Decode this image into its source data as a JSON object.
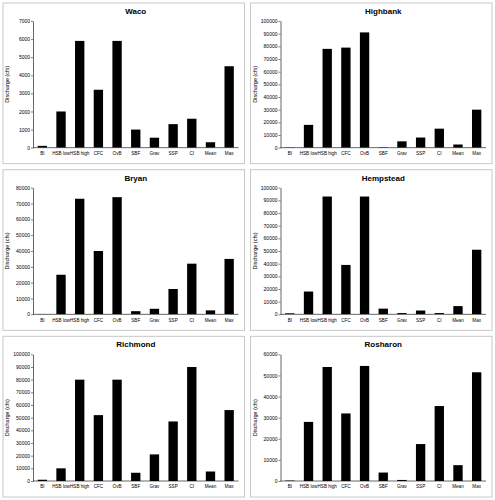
{
  "chart_data": [
    {
      "type": "bar",
      "title": "Waco",
      "y_label": "Discharge (cfs)",
      "color": "#000000",
      "categories": [
        "BI",
        "HSB low",
        "HSB high",
        "CFC",
        "OvB",
        "SBF",
        "Grav",
        "SSP",
        "CI",
        "Mean",
        "Max"
      ],
      "values": [
        100,
        2000,
        5900,
        3200,
        5900,
        1000,
        550,
        1300,
        1600,
        300,
        4500
      ],
      "ylim": [
        0,
        7000
      ],
      "yticks": [
        0,
        1000,
        2000,
        3000,
        4000,
        5000,
        6000,
        7000
      ]
    },
    {
      "type": "bar",
      "title": "Highbank",
      "y_label": "Discharge (cfs)",
      "color": "#000000",
      "categories": [
        "BI",
        "HSB low",
        "HSB high",
        "CFC",
        "OvB",
        "SBF",
        "Grav",
        "SSP",
        "CI",
        "Mean",
        "Max"
      ],
      "values": [
        200,
        18000,
        78000,
        79000,
        91000,
        300,
        5000,
        8000,
        15000,
        2500,
        30000
      ],
      "ylim": [
        0,
        100000
      ],
      "yticks": [
        0,
        10000,
        20000,
        30000,
        40000,
        50000,
        60000,
        70000,
        80000,
        90000,
        100000
      ]
    },
    {
      "type": "bar",
      "title": "Bryan",
      "y_label": "Discharge (cfs)",
      "color": "#000000",
      "categories": [
        "BI",
        "HSB low",
        "HSB high",
        "CFC",
        "OvB",
        "SBF",
        "Grav",
        "SSP",
        "CI",
        "Mean",
        "Max"
      ],
      "values": [
        200,
        25000,
        73000,
        40000,
        74000,
        2000,
        3500,
        16000,
        32000,
        2500,
        35000
      ],
      "ylim": [
        0,
        80000
      ],
      "yticks": [
        0,
        10000,
        20000,
        30000,
        40000,
        50000,
        60000,
        70000,
        80000
      ]
    },
    {
      "type": "bar",
      "title": "Hempstead",
      "y_label": "Discharge (cfs)",
      "color": "#000000",
      "categories": [
        "BI",
        "HSB low",
        "HSB high",
        "CFC",
        "OvB",
        "SBF",
        "Grav",
        "SSP",
        "CI",
        "Mean",
        "Max"
      ],
      "values": [
        800,
        18000,
        93000,
        39000,
        93000,
        4500,
        1000,
        3000,
        1000,
        6500,
        51000
      ],
      "ylim": [
        0,
        100000
      ],
      "yticks": [
        0,
        10000,
        20000,
        30000,
        40000,
        50000,
        60000,
        70000,
        80000,
        90000,
        100000
      ]
    },
    {
      "type": "bar",
      "title": "Richmond",
      "y_label": "Discharge (cfs)",
      "color": "#000000",
      "categories": [
        "BI",
        "HSB low",
        "HSB high",
        "CFC",
        "OvB",
        "SBF",
        "Grav",
        "SSP",
        "CI",
        "Mean",
        "Max"
      ],
      "values": [
        1000,
        10000,
        80000,
        52000,
        80000,
        6500,
        21000,
        47000,
        90000,
        7500,
        56000
      ],
      "ylim": [
        0,
        100000
      ],
      "yticks": [
        0,
        10000,
        20000,
        30000,
        40000,
        50000,
        60000,
        70000,
        80000,
        90000,
        100000
      ]
    },
    {
      "type": "bar",
      "title": "Rosharon",
      "y_label": "Discharge (cfs)",
      "color": "#000000",
      "categories": [
        "BI",
        "HSB low",
        "HSB high",
        "CFC",
        "OvB",
        "SBF",
        "Grav",
        "SSP",
        "CI",
        "Mean",
        "Max"
      ],
      "values": [
        200,
        28000,
        54000,
        32000,
        54500,
        4000,
        500,
        17500,
        35500,
        7500,
        51500
      ],
      "ylim": [
        0,
        60000
      ],
      "yticks": [
        0,
        10000,
        20000,
        30000,
        40000,
        50000,
        60000
      ]
    }
  ]
}
